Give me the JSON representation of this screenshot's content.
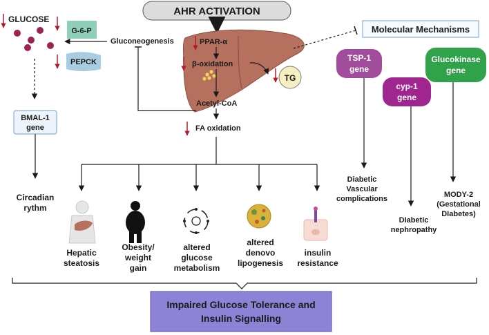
{
  "header": {
    "title": "AHR ACTIVATION"
  },
  "glucose": {
    "label": "GLUCOSE"
  },
  "enzymes": {
    "g6p": "G-6-P",
    "pepck": "PEPCK"
  },
  "pathway": {
    "gluconeogenesis": "Gluconeogenesis",
    "ppar": "PPAR-α",
    "beta_oxidation": "β-oxidation",
    "tg": "TG",
    "acetyl_coa": "Acetyl-CoA",
    "fa_oxidation": "FA oxidation"
  },
  "bmal": {
    "line1": "BMAL-1",
    "line2": "gene"
  },
  "circadian": {
    "line1": "Circadian",
    "line2": "rythm"
  },
  "outcomes": {
    "hepatic": {
      "line1": "Hepatic",
      "line2": "steatosis"
    },
    "obesity": {
      "line1": "Obesity/",
      "line2": "weight",
      "line3": "gain"
    },
    "glucose_met": {
      "line1": "altered",
      "line2": "glucose",
      "line3": "metabolism"
    },
    "denovo": {
      "line1": "altered",
      "line2": "denovo",
      "line3": "lipogenesis"
    },
    "insulin": {
      "line1": "insulin",
      "line2": "resistance"
    }
  },
  "molecular": {
    "title": "Molecular Mechanisms",
    "tsp1": {
      "line1": "TSP-1",
      "line2": "gene"
    },
    "cyp1": {
      "line1": "cyp-1",
      "line2": "gene"
    },
    "glucokinase": {
      "line1": "Glucokinase",
      "line2": "gene"
    },
    "diabetic_vascular": {
      "line1": "Diabetic",
      "line2": "Vascular",
      "line3": "complications"
    },
    "diabetic_nephropathy": {
      "line1": "DIabetic",
      "line2": "nephropathy"
    },
    "mody": {
      "line1": "MODY-2",
      "line2": "(Gestational",
      "line3": "DIabetes)"
    }
  },
  "footer": {
    "line1": "Impaired Glucose Tolerance and",
    "line2": "Insulin Signalling"
  },
  "colors": {
    "header_fill": "#dcdcdc",
    "liver": "#b5705e",
    "down_arrow": "#b01c2e",
    "glucose_dots": "#9b2452",
    "g6p": "#8fcfb7",
    "pepck": "#a9cde0",
    "bmal_fill": "#eef4fb",
    "bmal_border": "#6f9fd0",
    "tsp1": "#a24c9c",
    "cyp1": "#a0268f",
    "glucokinase": "#2fa24a",
    "tg": "#f6efc2",
    "footer_fill": "#8c83d6"
  }
}
